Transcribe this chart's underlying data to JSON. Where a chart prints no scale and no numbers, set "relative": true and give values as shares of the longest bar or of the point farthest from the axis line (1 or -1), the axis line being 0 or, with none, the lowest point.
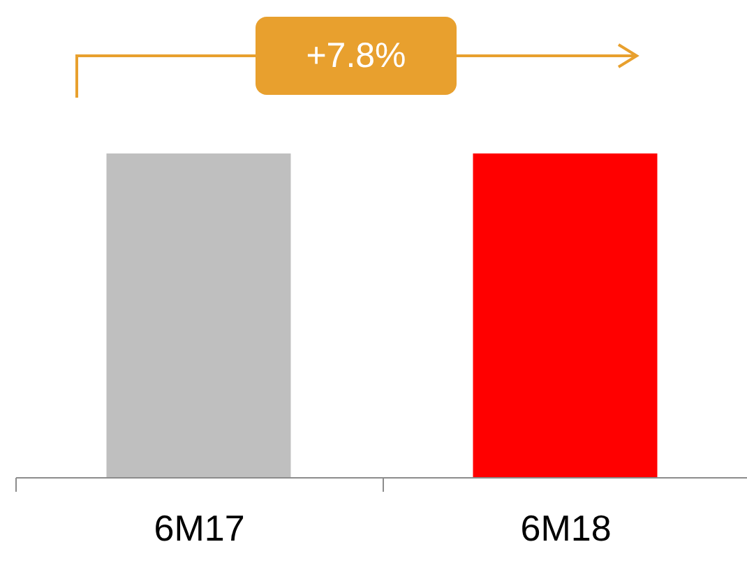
{
  "chart_data": {
    "type": "bar",
    "relative": true,
    "categories": [
      "6M17",
      "6M18"
    ],
    "values": [
      1,
      1
    ],
    "colors": [
      "#bfbfbf",
      "#ff0000"
    ],
    "annotations": [
      "+7.8%"
    ]
  }
}
